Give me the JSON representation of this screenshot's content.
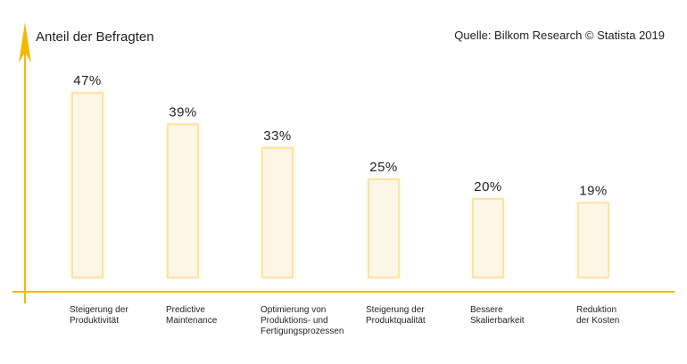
{
  "chart_data": {
    "type": "bar",
    "ylabel": "Anteil der Befragten",
    "source": "Quelle: Bilkom Research © Statista 2019",
    "categories": [
      [
        "Steigerung der",
        "Produktivität"
      ],
      [
        "Predictive",
        "Maintenance"
      ],
      [
        "Optimierung von",
        "Produktions- und",
        "Fertigungsprozessen"
      ],
      [
        "Steigerung der",
        "Produktqualität"
      ],
      [
        "Bessere",
        "Skalierbarkeit"
      ],
      [
        "Reduktion",
        "der Kosten"
      ]
    ],
    "values": [
      47,
      39,
      33,
      25,
      20,
      19
    ],
    "value_labels": [
      "47%",
      "39%",
      "33%",
      "25%",
      "20%",
      "19%"
    ],
    "unit": "%",
    "ylim": [
      0,
      55
    ],
    "grid": false,
    "legend": "none",
    "colors": {
      "axis": "#f5b800",
      "bar_fill": "#fdf6e7",
      "bar_stroke": "#fbe3a4",
      "bar_shadow": "#fcefcf",
      "text": "#1f1f1f"
    }
  }
}
